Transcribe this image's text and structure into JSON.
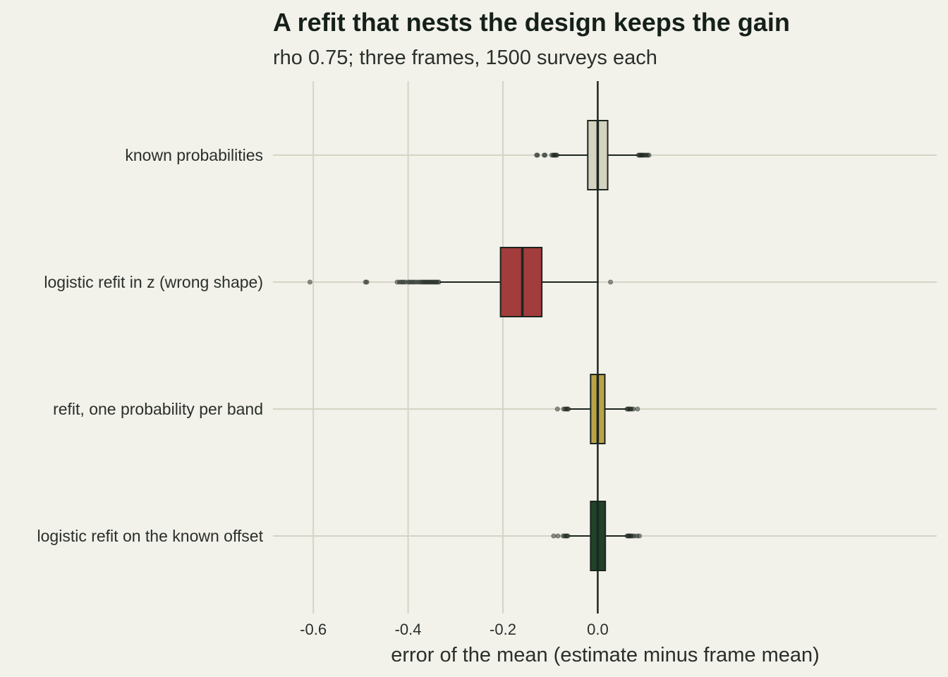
{
  "chart_data": {
    "type": "boxplot",
    "orientation": "horizontal",
    "title": "A refit that nests the design keeps the gain",
    "subtitle": "rho 0.75; three frames, 1500 surveys each",
    "xlabel": "error of the mean (estimate minus frame mean)",
    "ylabel": "",
    "xlim": [
      -0.685,
      0.715
    ],
    "xticks": [
      -0.6,
      -0.4,
      -0.2,
      0.0
    ],
    "xtick_labels": [
      "-0.6",
      "-0.4",
      "-0.2",
      "0.0"
    ],
    "grid": true,
    "reference_line_x": 0.0,
    "categories": [
      "known probabilities",
      "logistic refit in z (wrong shape)",
      "refit, one probability per band",
      "logistic refit on the known offset"
    ],
    "series": [
      {
        "category": "known probabilities",
        "color": "#d4d3c1",
        "whisker_low": -0.084,
        "q1": -0.021,
        "median": 0.0,
        "q3": 0.021,
        "whisker_high": 0.084,
        "outliers": [
          -0.129,
          -0.127,
          -0.113,
          -0.111,
          -0.097,
          -0.094,
          -0.092,
          -0.09,
          -0.088,
          -0.086,
          0.086,
          0.088,
          0.09,
          0.092,
          0.094,
          0.096,
          0.099,
          0.102,
          0.105,
          0.108
        ]
      },
      {
        "category": "logistic refit in z (wrong shape)",
        "color": "#a33c3c",
        "whisker_low": -0.333,
        "q1": -0.205,
        "median": -0.159,
        "q3": -0.118,
        "whisker_high": 0.002,
        "outliers": [
          -0.607,
          -0.49,
          -0.487,
          -0.423,
          -0.418,
          -0.414,
          -0.41,
          -0.406,
          -0.4,
          -0.396,
          -0.392,
          -0.388,
          -0.384,
          -0.379,
          -0.375,
          -0.371,
          -0.368,
          -0.365,
          -0.362,
          -0.359,
          -0.356,
          -0.353,
          -0.35,
          -0.347,
          -0.344,
          -0.341,
          -0.338,
          -0.335,
          0.027
        ]
      },
      {
        "category": "refit, one probability per band",
        "color": "#b9a247",
        "whisker_low": -0.06,
        "q1": -0.015,
        "median": 0.0,
        "q3": 0.015,
        "whisker_high": 0.06,
        "outliers": [
          -0.085,
          -0.072,
          -0.069,
          -0.066,
          -0.064,
          -0.062,
          0.062,
          0.064,
          0.066,
          0.069,
          0.071,
          0.075,
          0.084
        ]
      },
      {
        "category": "logistic refit on the known offset",
        "color": "#1f4229",
        "whisker_low": -0.061,
        "q1": -0.015,
        "median": 0.0,
        "q3": 0.016,
        "whisker_high": 0.061,
        "outliers": [
          -0.093,
          -0.084,
          -0.073,
          -0.07,
          -0.067,
          -0.065,
          -0.063,
          0.062,
          0.064,
          0.066,
          0.068,
          0.07,
          0.073,
          0.077,
          0.083,
          0.088
        ]
      }
    ]
  }
}
